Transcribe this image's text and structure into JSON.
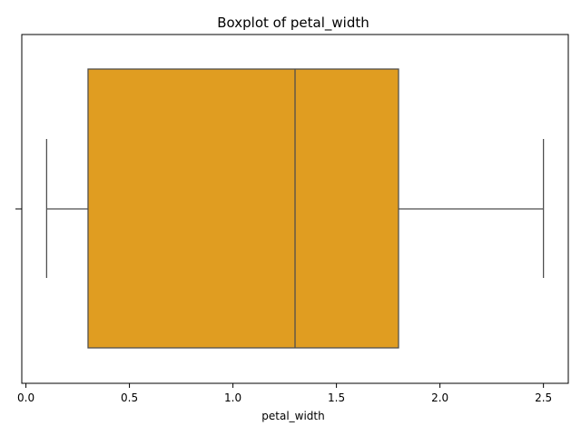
{
  "chart_data": {
    "type": "boxplot",
    "title": "Boxplot of petal_width",
    "xlabel": "petal_width",
    "ylabel": "",
    "orientation": "horizontal",
    "xlim": [
      -0.02,
      2.62
    ],
    "xticks": [
      0.0,
      0.5,
      1.0,
      1.5,
      2.0,
      2.5
    ],
    "xtick_labels": [
      "0.0",
      "0.5",
      "1.0",
      "1.5",
      "2.0",
      "2.5"
    ],
    "grid": false,
    "legend": "none",
    "box": {
      "whisker_low": 0.1,
      "q1": 0.3,
      "median": 1.3,
      "q3": 1.8,
      "whisker_high": 2.5
    },
    "colors": {
      "box_fill": "#e09d21",
      "box_edge": "#4d4d4d",
      "axes": "#000000"
    }
  }
}
